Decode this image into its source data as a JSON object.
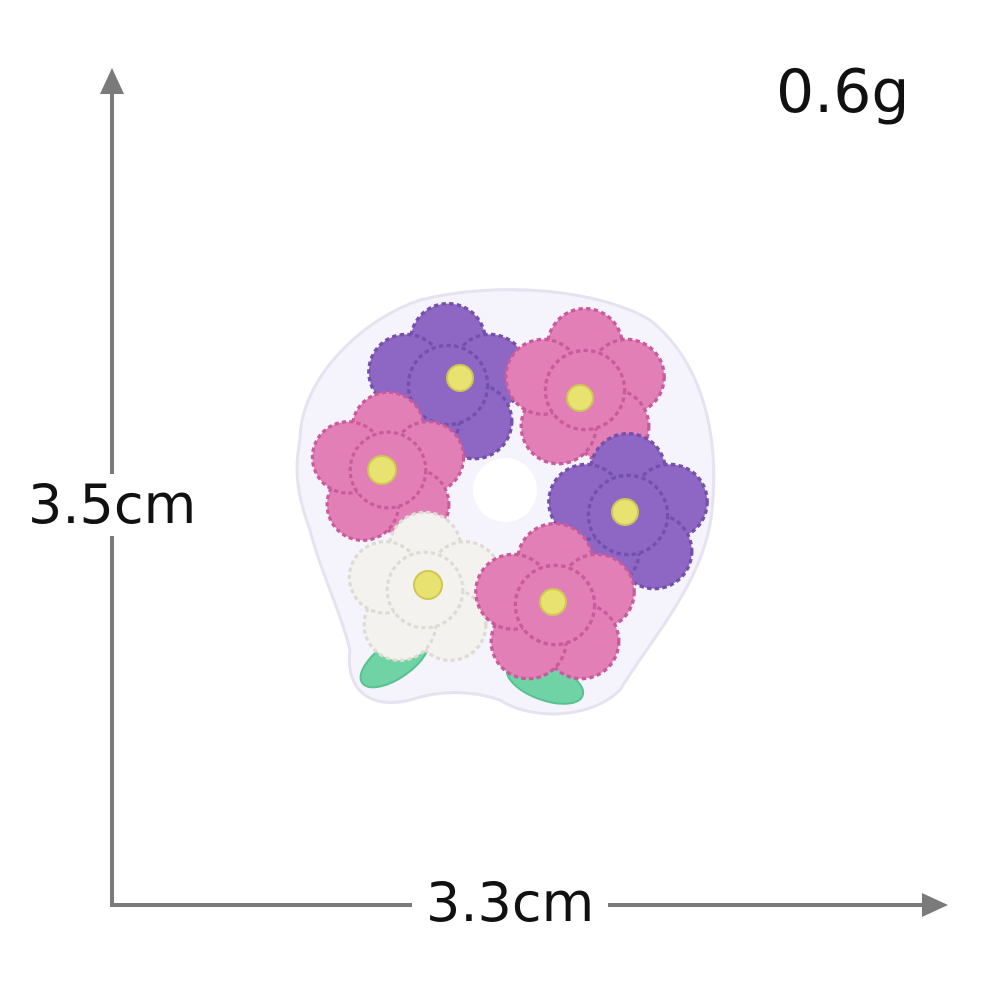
{
  "product": {
    "weight_label": "0.6g",
    "height_label": "3.5cm",
    "width_label": "3.3cm"
  },
  "image": {
    "subject": "embroidered-flower-wreath-patch",
    "colors": {
      "purple": "#8e66c4",
      "pink": "#e27fb7",
      "white": "#f4f2ee",
      "leaf": "#6fd3a6",
      "center": "#e8e270",
      "dimension_line": "#7a7a7a"
    }
  }
}
